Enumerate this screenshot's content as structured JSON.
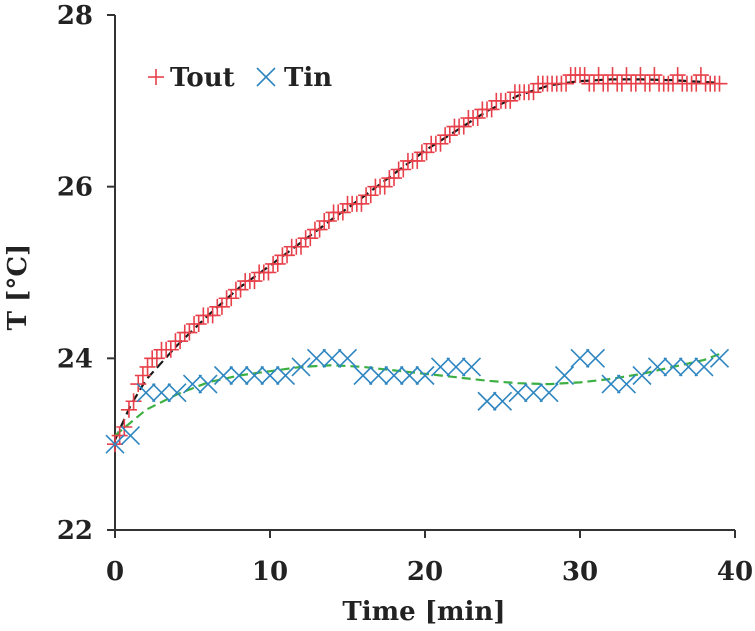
{
  "chart_data": {
    "type": "scatter",
    "xlabel": "Time [min]",
    "ylabel": "T [°C]",
    "xlim": [
      0,
      40
    ],
    "ylim": [
      22,
      28
    ],
    "xticks": [
      "0",
      "10",
      "20",
      "30",
      "40"
    ],
    "yticks": [
      "22",
      "24",
      "26",
      "28"
    ],
    "grid": false,
    "legend_position": "top-left",
    "series": [
      {
        "name": "Tout",
        "marker": "plus",
        "color": "#e8404a",
        "points": [
          [
            0.0,
            23.0
          ],
          [
            0.3,
            23.1
          ],
          [
            0.6,
            23.2
          ],
          [
            0.9,
            23.4
          ],
          [
            1.2,
            23.5
          ],
          [
            1.5,
            23.7
          ],
          [
            1.8,
            23.8
          ],
          [
            2.1,
            23.9
          ],
          [
            2.4,
            24.0
          ],
          [
            2.7,
            24.0
          ],
          [
            3.0,
            24.1
          ],
          [
            3.3,
            24.1
          ],
          [
            3.6,
            24.1
          ],
          [
            3.9,
            24.2
          ],
          [
            4.2,
            24.2
          ],
          [
            4.5,
            24.3
          ],
          [
            4.8,
            24.3
          ],
          [
            5.1,
            24.4
          ],
          [
            5.4,
            24.4
          ],
          [
            5.7,
            24.5
          ],
          [
            6.0,
            24.5
          ],
          [
            6.3,
            24.5
          ],
          [
            6.6,
            24.6
          ],
          [
            6.9,
            24.6
          ],
          [
            7.2,
            24.7
          ],
          [
            7.5,
            24.7
          ],
          [
            7.8,
            24.8
          ],
          [
            8.1,
            24.8
          ],
          [
            8.4,
            24.9
          ],
          [
            8.7,
            24.9
          ],
          [
            9.0,
            24.9
          ],
          [
            9.3,
            25.0
          ],
          [
            9.6,
            25.0
          ],
          [
            9.9,
            25.0
          ],
          [
            10.2,
            25.1
          ],
          [
            10.5,
            25.1
          ],
          [
            10.8,
            25.2
          ],
          [
            11.1,
            25.2
          ],
          [
            11.4,
            25.3
          ],
          [
            11.7,
            25.3
          ],
          [
            12.0,
            25.3
          ],
          [
            12.3,
            25.4
          ],
          [
            12.6,
            25.4
          ],
          [
            12.9,
            25.5
          ],
          [
            13.2,
            25.5
          ],
          [
            13.5,
            25.6
          ],
          [
            13.8,
            25.6
          ],
          [
            14.1,
            25.7
          ],
          [
            14.4,
            25.7
          ],
          [
            14.7,
            25.7
          ],
          [
            15.0,
            25.8
          ],
          [
            15.3,
            25.8
          ],
          [
            15.6,
            25.8
          ],
          [
            15.9,
            25.8
          ],
          [
            16.2,
            25.9
          ],
          [
            16.5,
            25.9
          ],
          [
            16.8,
            26.0
          ],
          [
            17.1,
            26.0
          ],
          [
            17.4,
            26.0
          ],
          [
            17.7,
            26.1
          ],
          [
            18.0,
            26.1
          ],
          [
            18.3,
            26.2
          ],
          [
            18.6,
            26.2
          ],
          [
            18.9,
            26.3
          ],
          [
            19.2,
            26.3
          ],
          [
            19.5,
            26.3
          ],
          [
            19.8,
            26.4
          ],
          [
            20.1,
            26.4
          ],
          [
            20.4,
            26.5
          ],
          [
            20.7,
            26.5
          ],
          [
            21.0,
            26.5
          ],
          [
            21.3,
            26.6
          ],
          [
            21.6,
            26.6
          ],
          [
            21.9,
            26.7
          ],
          [
            22.2,
            26.7
          ],
          [
            22.5,
            26.7
          ],
          [
            22.8,
            26.8
          ],
          [
            23.1,
            26.8
          ],
          [
            23.4,
            26.8
          ],
          [
            23.7,
            26.9
          ],
          [
            24.0,
            26.9
          ],
          [
            24.3,
            26.9
          ],
          [
            24.6,
            27.0
          ],
          [
            24.9,
            27.0
          ],
          [
            25.2,
            27.0
          ],
          [
            25.5,
            27.0
          ],
          [
            25.8,
            27.1
          ],
          [
            26.1,
            27.1
          ],
          [
            26.4,
            27.1
          ],
          [
            26.7,
            27.1
          ],
          [
            27.0,
            27.1
          ],
          [
            27.3,
            27.2
          ],
          [
            27.6,
            27.2
          ],
          [
            27.9,
            27.2
          ],
          [
            28.2,
            27.2
          ],
          [
            28.5,
            27.2
          ],
          [
            28.8,
            27.2
          ],
          [
            29.1,
            27.2
          ],
          [
            29.4,
            27.3
          ],
          [
            29.7,
            27.3
          ],
          [
            30.0,
            27.3
          ],
          [
            30.3,
            27.3
          ],
          [
            30.6,
            27.2
          ],
          [
            30.9,
            27.2
          ],
          [
            31.2,
            27.3
          ],
          [
            31.5,
            27.2
          ],
          [
            31.8,
            27.2
          ],
          [
            32.1,
            27.3
          ],
          [
            32.4,
            27.2
          ],
          [
            32.7,
            27.2
          ],
          [
            33.0,
            27.3
          ],
          [
            33.3,
            27.2
          ],
          [
            33.6,
            27.2
          ],
          [
            33.9,
            27.3
          ],
          [
            34.2,
            27.2
          ],
          [
            34.5,
            27.2
          ],
          [
            34.8,
            27.3
          ],
          [
            35.1,
            27.2
          ],
          [
            35.4,
            27.2
          ],
          [
            35.7,
            27.2
          ],
          [
            36.0,
            27.2
          ],
          [
            36.3,
            27.3
          ],
          [
            36.6,
            27.2
          ],
          [
            36.9,
            27.2
          ],
          [
            37.2,
            27.2
          ],
          [
            37.5,
            27.2
          ],
          [
            37.8,
            27.3
          ],
          [
            38.1,
            27.2
          ],
          [
            38.4,
            27.2
          ],
          [
            38.7,
            27.2
          ],
          [
            39.0,
            27.2
          ]
        ]
      },
      {
        "name": "Tin",
        "marker": "cross",
        "color": "#2e86c1",
        "points": [
          [
            0.0,
            23.0
          ],
          [
            1.0,
            23.1
          ],
          [
            2.0,
            23.6
          ],
          [
            3.0,
            23.6
          ],
          [
            4.0,
            23.6
          ],
          [
            5.0,
            23.7
          ],
          [
            6.0,
            23.7
          ],
          [
            7.0,
            23.8
          ],
          [
            8.0,
            23.8
          ],
          [
            9.0,
            23.8
          ],
          [
            10.0,
            23.8
          ],
          [
            11.0,
            23.8
          ],
          [
            12.0,
            23.9
          ],
          [
            13.0,
            24.0
          ],
          [
            14.0,
            24.0
          ],
          [
            15.0,
            24.0
          ],
          [
            16.0,
            23.8
          ],
          [
            17.0,
            23.8
          ],
          [
            18.0,
            23.8
          ],
          [
            19.0,
            23.8
          ],
          [
            20.0,
            23.8
          ],
          [
            21.0,
            23.9
          ],
          [
            22.0,
            23.9
          ],
          [
            23.0,
            23.9
          ],
          [
            24.0,
            23.5
          ],
          [
            25.0,
            23.5
          ],
          [
            26.0,
            23.6
          ],
          [
            27.0,
            23.6
          ],
          [
            28.0,
            23.6
          ],
          [
            29.0,
            23.8
          ],
          [
            30.0,
            24.0
          ],
          [
            31.0,
            24.0
          ],
          [
            32.0,
            23.7
          ],
          [
            33.0,
            23.7
          ],
          [
            34.0,
            23.8
          ],
          [
            35.0,
            23.9
          ],
          [
            36.0,
            23.9
          ],
          [
            37.0,
            23.9
          ],
          [
            38.0,
            23.9
          ],
          [
            39.0,
            24.0
          ]
        ]
      }
    ],
    "trendlines": [
      {
        "for": "Tout",
        "color": "#1a1a1a",
        "style": "dashed",
        "points": [
          [
            0,
            23.05
          ],
          [
            1,
            23.45
          ],
          [
            2,
            23.75
          ],
          [
            4,
            24.15
          ],
          [
            6,
            24.5
          ],
          [
            8,
            24.82
          ],
          [
            10,
            25.08
          ],
          [
            12,
            25.35
          ],
          [
            14,
            25.62
          ],
          [
            16,
            25.88
          ],
          [
            18,
            26.15
          ],
          [
            20,
            26.42
          ],
          [
            22,
            26.65
          ],
          [
            24,
            26.88
          ],
          [
            26,
            27.06
          ],
          [
            28,
            27.18
          ],
          [
            30,
            27.23
          ],
          [
            32,
            27.25
          ],
          [
            34,
            27.25
          ],
          [
            36,
            27.24
          ],
          [
            38,
            27.22
          ],
          [
            39,
            27.21
          ]
        ]
      },
      {
        "for": "Tin",
        "color": "#3cb043",
        "style": "dashed",
        "points": [
          [
            0,
            23.1
          ],
          [
            1,
            23.25
          ],
          [
            2,
            23.4
          ],
          [
            4,
            23.58
          ],
          [
            6,
            23.72
          ],
          [
            8,
            23.8
          ],
          [
            10,
            23.85
          ],
          [
            12,
            23.9
          ],
          [
            14,
            23.92
          ],
          [
            16,
            23.9
          ],
          [
            18,
            23.86
          ],
          [
            20,
            23.82
          ],
          [
            22,
            23.78
          ],
          [
            24,
            23.74
          ],
          [
            26,
            23.71
          ],
          [
            28,
            23.7
          ],
          [
            30,
            23.72
          ],
          [
            32,
            23.76
          ],
          [
            34,
            23.82
          ],
          [
            36,
            23.9
          ],
          [
            38,
            23.98
          ],
          [
            39,
            24.05
          ]
        ]
      }
    ]
  }
}
